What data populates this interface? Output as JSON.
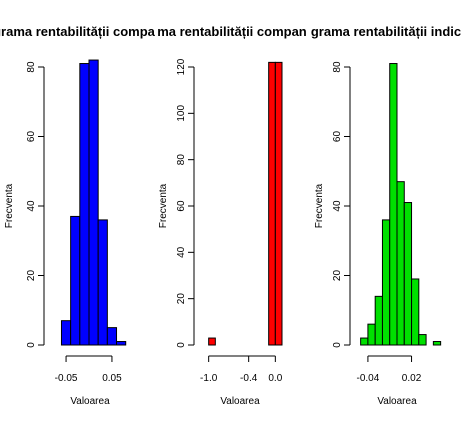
{
  "chart_data": [
    {
      "type": "histogram",
      "title": "Histograma rentabilității companiei",
      "title_visible": "grama rentabilității compa",
      "xlabel": "Valoarea",
      "ylabel": "Frecventa",
      "fill_color": "#0000ff",
      "xlim": [
        -0.085,
        0.085
      ],
      "ylim": [
        0,
        84
      ],
      "x_ticks": [
        -0.05,
        0.05
      ],
      "x_tick_labels": [
        "-0.05",
        "0.05"
      ],
      "y_ticks": [
        0,
        20,
        40,
        60,
        80
      ],
      "y_tick_labels": [
        "0",
        "20",
        "40",
        "60",
        "80"
      ],
      "bins": [
        {
          "x0": -0.06,
          "x1": -0.04,
          "count": 7
        },
        {
          "x0": -0.04,
          "x1": -0.02,
          "count": 37
        },
        {
          "x0": -0.02,
          "x1": 0.0,
          "count": 81
        },
        {
          "x0": 0.0,
          "x1": 0.02,
          "count": 82
        },
        {
          "x0": 0.02,
          "x1": 0.04,
          "count": 36
        },
        {
          "x0": 0.04,
          "x1": 0.06,
          "count": 5
        },
        {
          "x0": 0.06,
          "x1": 0.08,
          "count": 1
        }
      ]
    },
    {
      "type": "histogram",
      "title": "Histograma rentabilității companiei",
      "title_visible": "ma rentabilității compan",
      "xlabel": "Valoarea",
      "ylabel": "Frecventa",
      "fill_color": "#ff0000",
      "xlim": [
        -1.1,
        0.1
      ],
      "ylim": [
        0,
        124
      ],
      "x_ticks": [
        -1.0,
        -0.4,
        0.0
      ],
      "x_tick_labels": [
        "-1.0",
        "-0.4",
        "0.0"
      ],
      "y_ticks": [
        0,
        20,
        40,
        60,
        80,
        100,
        120
      ],
      "y_tick_labels": [
        "0",
        "20",
        "40",
        "60",
        "80",
        "100",
        "120"
      ],
      "bins": [
        {
          "x0": -1.0,
          "x1": -0.9,
          "count": 3
        },
        {
          "x0": -0.9,
          "x1": -0.8,
          "count": 0
        },
        {
          "x0": -0.8,
          "x1": -0.7,
          "count": 0
        },
        {
          "x0": -0.7,
          "x1": -0.6,
          "count": 0
        },
        {
          "x0": -0.6,
          "x1": -0.5,
          "count": 0
        },
        {
          "x0": -0.5,
          "x1": -0.4,
          "count": 0
        },
        {
          "x0": -0.4,
          "x1": -0.3,
          "count": 0
        },
        {
          "x0": -0.3,
          "x1": -0.2,
          "count": 0
        },
        {
          "x0": -0.2,
          "x1": -0.1,
          "count": 0
        },
        {
          "x0": -0.1,
          "x1": 0.0,
          "count": 122
        },
        {
          "x0": 0.0,
          "x1": 0.1,
          "count": 122
        }
      ]
    },
    {
      "type": "histogram",
      "title": "Histograma rentabilității indicelui",
      "title_visible": "grama rentabilității indic",
      "xlabel": "Valoarea",
      "ylabel": "Frecventa",
      "fill_color": "#00e000",
      "xlim": [
        -0.055,
        0.055
      ],
      "ylim": [
        0,
        84
      ],
      "x_ticks": [
        -0.04,
        0.02
      ],
      "x_tick_labels": [
        "-0.04",
        "0.02"
      ],
      "y_ticks": [
        0,
        20,
        40,
        60,
        80
      ],
      "y_tick_labels": [
        "0",
        "20",
        "40",
        "60",
        "80"
      ],
      "bins": [
        {
          "x0": -0.05,
          "x1": -0.04,
          "count": 2
        },
        {
          "x0": -0.04,
          "x1": -0.03,
          "count": 6
        },
        {
          "x0": -0.03,
          "x1": -0.02,
          "count": 14
        },
        {
          "x0": -0.02,
          "x1": -0.01,
          "count": 36
        },
        {
          "x0": -0.01,
          "x1": 0.0,
          "count": 81
        },
        {
          "x0": 0.0,
          "x1": 0.01,
          "count": 47
        },
        {
          "x0": 0.01,
          "x1": 0.02,
          "count": 41
        },
        {
          "x0": 0.02,
          "x1": 0.03,
          "count": 19
        },
        {
          "x0": 0.03,
          "x1": 0.04,
          "count": 3
        },
        {
          "x0": 0.04,
          "x1": 0.05,
          "count": 0
        },
        {
          "x0": 0.05,
          "x1": 0.06,
          "count": 1
        }
      ]
    }
  ]
}
